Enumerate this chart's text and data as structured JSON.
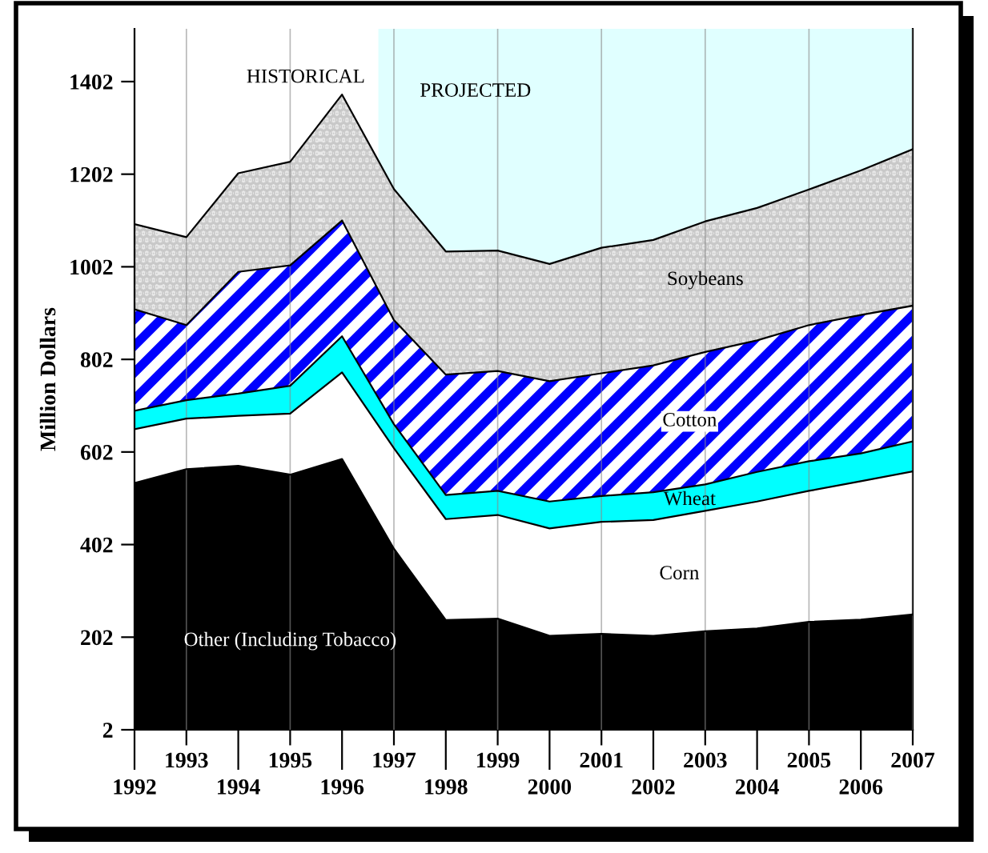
{
  "chart_data": {
    "type": "area",
    "stacked": true,
    "ylabel": "Million Dollars",
    "x": [
      1992,
      1993,
      1994,
      1995,
      1996,
      1997,
      1998,
      1999,
      2000,
      2001,
      2002,
      2003,
      2004,
      2005,
      2006,
      2007
    ],
    "series": [
      {
        "name": "Other (Including Tobacco)",
        "color": "#000000",
        "values": [
          535,
          565,
          572,
          553,
          587,
          393,
          239,
          242,
          205,
          209,
          205,
          215,
          221,
          235,
          240,
          251
        ]
      },
      {
        "name": "Corn",
        "color": "#ffffff",
        "values": [
          116,
          109,
          108,
          132,
          187,
          217,
          218,
          224,
          232,
          242,
          250,
          260,
          274,
          283,
          299,
          309
        ]
      },
      {
        "name": "Wheat",
        "color": "#00ffff",
        "values": [
          40,
          40,
          48,
          60,
          78,
          52,
          52,
          52,
          58,
          56,
          60,
          57,
          64,
          64,
          60,
          65
        ]
      },
      {
        "name": "Cotton",
        "color": "#0000ff",
        "values": [
          219,
          162,
          263,
          260,
          250,
          225,
          260,
          259,
          260,
          265,
          274,
          286,
          284,
          294,
          299,
          293
        ]
      },
      {
        "name": "Soybeans",
        "color": "#e8e8e8",
        "values": [
          184,
          190,
          213,
          224,
          272,
          283,
          266,
          260,
          253,
          271,
          271,
          282,
          286,
          293,
          312,
          338
        ]
      }
    ],
    "xlim": [
      1992,
      2007
    ],
    "xticks": [
      1993,
      1995,
      1997,
      1999,
      2001,
      2003,
      2005,
      2007
    ],
    "x2lim": [
      1992,
      2007
    ],
    "x2ticks": [
      1992,
      1994,
      1996,
      1998,
      2000,
      2002,
      2004,
      2006
    ],
    "ylim": [
      2,
      1516
    ],
    "yticks": [
      2,
      202,
      402,
      602,
      802,
      1002,
      1202,
      1402
    ],
    "bands": [
      {
        "axis": "x",
        "from": 1996.7,
        "to": 2007,
        "label": "PROJECTED",
        "color": "#e0ffff"
      }
    ],
    "annotations": [
      "HISTORICAL"
    ],
    "grid": "x"
  }
}
